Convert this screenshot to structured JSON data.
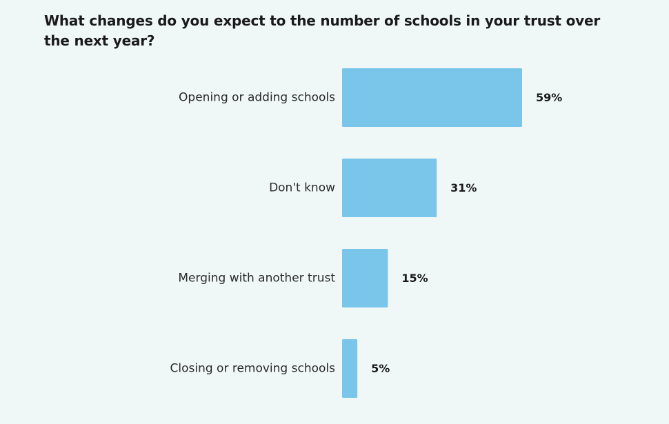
{
  "chart_data": {
    "type": "bar",
    "orientation": "horizontal",
    "title": "What changes do you expect to the number of schools in your trust over the next year?",
    "categories": [
      "Opening or adding schools",
      "Don't know",
      "Merging with another trust",
      "Closing or removing schools"
    ],
    "values": [
      59,
      31,
      15,
      5
    ],
    "value_labels": [
      "59%",
      "31%",
      "15%",
      "5%"
    ],
    "unit": "%",
    "xlim": [
      0,
      100
    ],
    "grid": false,
    "legend": "none",
    "bar_color": "#79c6ea",
    "background_color": "#f0f7f7"
  }
}
